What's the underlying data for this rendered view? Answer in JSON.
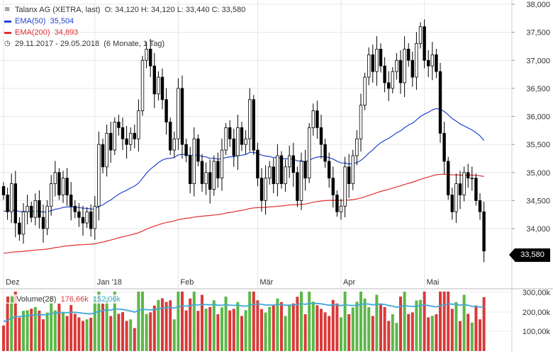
{
  "header": {
    "title": "Talanx AG (XETRA, last)",
    "ohlc": "O: 34,120  H: 34,120  L: 33,440  C: 33,580",
    "ema50_label": "EMA(50)",
    "ema50_value": "35,504",
    "ema200_label": "EMA(200)",
    "ema200_value": "34,893",
    "period": "29.11.2017 - 29.05.2018",
    "interval": "(6 Monate, 1 Tag)"
  },
  "volume_legend": {
    "label": "Volume(28)",
    "value1": "176,66k",
    "value2": "152,06k"
  },
  "last_price_label": "33,580",
  "colors": {
    "ema50": "#2244cc",
    "ema200": "#e03030",
    "vol_up": "#5cb848",
    "vol_down": "#d93a3a",
    "vol_avg": "#3fa9d8"
  },
  "chart_data": {
    "type": "candlestick",
    "y_axis_labels": [
      "38,000",
      "37,500",
      "37,000",
      "36,500",
      "36,000",
      "35,500",
      "35,000",
      "34,500",
      "34,000"
    ],
    "y_axis_values": [
      38.0,
      37.5,
      37.0,
      36.5,
      36.0,
      35.5,
      35.0,
      34.5,
      34.0
    ],
    "ylim": [
      33.2,
      38.0
    ],
    "x_axis_labels": [
      "Dez",
      "Jan '18",
      "Feb",
      "Mär",
      "Apr",
      "Mai"
    ],
    "x_axis_label_index": [
      0,
      23,
      44,
      64,
      85,
      106
    ],
    "grid": true,
    "closes": [
      34.6,
      34.3,
      34.8,
      34.1,
      33.9,
      34.3,
      34.4,
      34.2,
      34.5,
      34.2,
      34.0,
      34.4,
      34.8,
      35.0,
      34.6,
      34.9,
      34.6,
      34.4,
      34.3,
      34.2,
      34.1,
      34.3,
      34.0,
      34.4,
      35.5,
      35.1,
      35.7,
      35.4,
      35.9,
      35.8,
      35.6,
      35.5,
      35.7,
      35.6,
      36.1,
      37.0,
      37.2,
      36.9,
      36.4,
      36.7,
      36.3,
      35.9,
      35.4,
      35.6,
      36.5,
      35.5,
      35.3,
      34.8,
      35.6,
      35.2,
      34.8,
      35.0,
      34.7,
      35.2,
      34.9,
      35.4,
      35.8,
      35.6,
      35.3,
      35.8,
      35.5,
      35.6,
      36.3,
      35.4,
      34.9,
      34.5,
      34.9,
      35.1,
      34.8,
      35.3,
      34.8,
      35.1,
      35.3,
      35.0,
      34.5,
      35.2,
      34.9,
      35.8,
      36.1,
      35.8,
      35.5,
      35.2,
      34.9,
      34.6,
      34.3,
      34.4,
      35.1,
      34.8,
      35.3,
      35.6,
      36.2,
      36.7,
      37.1,
      36.8,
      37.2,
      36.9,
      36.6,
      36.5,
      36.8,
      37.0,
      36.6,
      37.2,
      37.0,
      36.7,
      37.3,
      37.6,
      37.0,
      36.9,
      37.1,
      36.8,
      35.7,
      35.2,
      34.6,
      34.3,
      34.8,
      34.6,
      35.0,
      34.9,
      34.9,
      34.5,
      34.3,
      33.6
    ]
  }
}
